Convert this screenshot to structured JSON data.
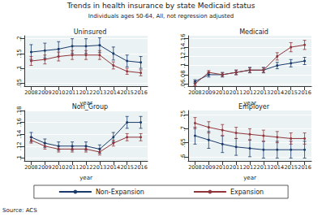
{
  "title": "Trends in health insurance by state Medicaid status",
  "subtitle": "Individuals ages 50-64, All, not regression adjusted",
  "source": "Source: ACS",
  "legend": "bottom",
  "chart_data": [
    {
      "type": "line",
      "title": "Uninsured",
      "xlabel": "year",
      "categories": [
        "2008",
        "2009",
        "2010",
        "2011",
        "2012",
        "2013",
        "2014",
        "2015",
        "2016"
      ],
      "ylim": [
        0.04,
        0.21
      ],
      "yticks": [
        {
          "value": 0.05,
          "label": ".05"
        },
        {
          "value": 0.1,
          "label": ".1"
        },
        {
          "value": 0.15,
          "label": ".15"
        },
        {
          "value": 0.2,
          "label": ".2"
        }
      ],
      "series": [
        {
          "name": "Non-Expansion",
          "color": "#1a3a6b",
          "marker": "circle",
          "values": [
            0.155,
            0.16,
            0.165,
            0.175,
            0.175,
            0.178,
            0.15,
            0.125,
            0.12
          ],
          "errors": [
            0.025,
            0.025,
            0.025,
            0.025,
            0.025,
            0.025,
            0.022,
            0.02,
            0.02
          ]
        },
        {
          "name": "Expansion",
          "color": "#90353b",
          "marker": "circle",
          "values": [
            0.125,
            0.13,
            0.14,
            0.145,
            0.145,
            0.145,
            0.11,
            0.09,
            0.085
          ],
          "errors": [
            0.015,
            0.015,
            0.015,
            0.015,
            0.015,
            0.015,
            0.012,
            0.01,
            0.01
          ]
        }
      ]
    },
    {
      "type": "line",
      "title": "Medicaid",
      "xlabel": "year",
      "categories": [
        "2008",
        "2009",
        "2010",
        "2011",
        "2012",
        "2013",
        "2014",
        "2015",
        "2016"
      ],
      "ylim": [
        0.055,
        0.165
      ],
      "yticks": [
        {
          "value": 0.06,
          "label": ".06"
        },
        {
          "value": 0.08,
          "label": ".08"
        },
        {
          "value": 0.1,
          "label": ".1"
        },
        {
          "value": 0.12,
          "label": ".12"
        },
        {
          "value": 0.14,
          "label": ".14"
        },
        {
          "value": 0.16,
          "label": ".16"
        }
      ],
      "series": [
        {
          "name": "Non-Expansion",
          "color": "#1a3a6b",
          "marker": "circle",
          "values": [
            0.065,
            0.08,
            0.08,
            0.085,
            0.09,
            0.09,
            0.1,
            0.105,
            0.11
          ],
          "errors": [
            0.004,
            0.005,
            0.005,
            0.005,
            0.006,
            0.006,
            0.007,
            0.008,
            0.008
          ]
        },
        {
          "name": "Expansion",
          "color": "#90353b",
          "marker": "circle",
          "values": [
            0.06,
            0.085,
            0.08,
            0.085,
            0.09,
            0.09,
            0.12,
            0.14,
            0.145
          ],
          "errors": [
            0.004,
            0.004,
            0.004,
            0.005,
            0.005,
            0.005,
            0.008,
            0.01,
            0.01
          ]
        }
      ]
    },
    {
      "type": "line",
      "title": "Non_Group",
      "xlabel": "year",
      "categories": [
        "2008",
        "2009",
        "2010",
        "2011",
        "2012",
        "2013",
        "2014",
        "2015",
        "2016"
      ],
      "ylim": [
        0.095,
        0.18
      ],
      "yticks": [
        {
          "value": 0.1,
          "label": ".1"
        },
        {
          "value": 0.12,
          "label": ".12"
        },
        {
          "value": 0.14,
          "label": ".14"
        },
        {
          "value": 0.16,
          "label": ".16"
        },
        {
          "value": 0.18,
          "label": ".18"
        }
      ],
      "series": [
        {
          "name": "Non-Expansion",
          "color": "#1a3a6b",
          "marker": "circle",
          "values": [
            0.135,
            0.125,
            0.12,
            0.12,
            0.12,
            0.115,
            0.135,
            0.16,
            0.16
          ],
          "errors": [
            0.008,
            0.007,
            0.007,
            0.007,
            0.007,
            0.007,
            0.008,
            0.01,
            0.01
          ]
        },
        {
          "name": "Expansion",
          "color": "#90353b",
          "marker": "circle",
          "values": [
            0.13,
            0.12,
            0.115,
            0.115,
            0.115,
            0.11,
            0.125,
            0.135,
            0.135
          ],
          "errors": [
            0.005,
            0.005,
            0.005,
            0.005,
            0.005,
            0.005,
            0.005,
            0.006,
            0.006
          ]
        }
      ]
    },
    {
      "type": "line",
      "title": "Employer",
      "xlabel": "year",
      "categories": [
        "2008",
        "2009",
        "2010",
        "2011",
        "2012",
        "2013",
        "2014",
        "2015",
        "2016"
      ],
      "ylim": [
        0.585,
        0.765
      ],
      "yticks": [
        {
          "value": 0.6,
          "label": ".6"
        },
        {
          "value": 0.65,
          "label": ".65"
        },
        {
          "value": 0.7,
          "label": ".7"
        },
        {
          "value": 0.75,
          "label": ".75"
        }
      ],
      "series": [
        {
          "name": "Non-Expansion",
          "color": "#1a3a6b",
          "marker": "circle",
          "values": [
            0.675,
            0.66,
            0.645,
            0.635,
            0.63,
            0.625,
            0.625,
            0.625,
            0.625
          ],
          "errors": [
            0.03,
            0.03,
            0.03,
            0.03,
            0.03,
            0.03,
            0.03,
            0.03,
            0.03
          ]
        },
        {
          "name": "Expansion",
          "color": "#90353b",
          "marker": "circle",
          "values": [
            0.72,
            0.705,
            0.695,
            0.685,
            0.68,
            0.675,
            0.67,
            0.665,
            0.665
          ],
          "errors": [
            0.02,
            0.02,
            0.02,
            0.02,
            0.02,
            0.02,
            0.02,
            0.02,
            0.02
          ]
        }
      ]
    }
  ]
}
